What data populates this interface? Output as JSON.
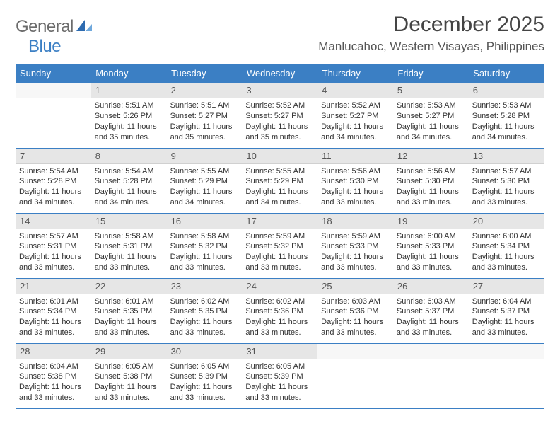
{
  "brand": {
    "general": "General",
    "blue": "Blue"
  },
  "title": "December 2025",
  "location": "Manlucahoc, Western Visayas, Philippines",
  "colors": {
    "header_bg": "#3b7fc4",
    "header_text": "#ffffff",
    "daynum_bg": "#e6e6e6",
    "border": "#3b7fc4",
    "logo_gray": "#6b6b6b",
    "logo_blue": "#3b7fc4"
  },
  "dayNames": [
    "Sunday",
    "Monday",
    "Tuesday",
    "Wednesday",
    "Thursday",
    "Friday",
    "Saturday"
  ],
  "weeks": [
    [
      null,
      {
        "n": "1",
        "sr": "Sunrise: 5:51 AM",
        "ss": "Sunset: 5:26 PM",
        "dl": "Daylight: 11 hours and 35 minutes."
      },
      {
        "n": "2",
        "sr": "Sunrise: 5:51 AM",
        "ss": "Sunset: 5:27 PM",
        "dl": "Daylight: 11 hours and 35 minutes."
      },
      {
        "n": "3",
        "sr": "Sunrise: 5:52 AM",
        "ss": "Sunset: 5:27 PM",
        "dl": "Daylight: 11 hours and 35 minutes."
      },
      {
        "n": "4",
        "sr": "Sunrise: 5:52 AM",
        "ss": "Sunset: 5:27 PM",
        "dl": "Daylight: 11 hours and 34 minutes."
      },
      {
        "n": "5",
        "sr": "Sunrise: 5:53 AM",
        "ss": "Sunset: 5:27 PM",
        "dl": "Daylight: 11 hours and 34 minutes."
      },
      {
        "n": "6",
        "sr": "Sunrise: 5:53 AM",
        "ss": "Sunset: 5:28 PM",
        "dl": "Daylight: 11 hours and 34 minutes."
      }
    ],
    [
      {
        "n": "7",
        "sr": "Sunrise: 5:54 AM",
        "ss": "Sunset: 5:28 PM",
        "dl": "Daylight: 11 hours and 34 minutes."
      },
      {
        "n": "8",
        "sr": "Sunrise: 5:54 AM",
        "ss": "Sunset: 5:28 PM",
        "dl": "Daylight: 11 hours and 34 minutes."
      },
      {
        "n": "9",
        "sr": "Sunrise: 5:55 AM",
        "ss": "Sunset: 5:29 PM",
        "dl": "Daylight: 11 hours and 34 minutes."
      },
      {
        "n": "10",
        "sr": "Sunrise: 5:55 AM",
        "ss": "Sunset: 5:29 PM",
        "dl": "Daylight: 11 hours and 34 minutes."
      },
      {
        "n": "11",
        "sr": "Sunrise: 5:56 AM",
        "ss": "Sunset: 5:30 PM",
        "dl": "Daylight: 11 hours and 33 minutes."
      },
      {
        "n": "12",
        "sr": "Sunrise: 5:56 AM",
        "ss": "Sunset: 5:30 PM",
        "dl": "Daylight: 11 hours and 33 minutes."
      },
      {
        "n": "13",
        "sr": "Sunrise: 5:57 AM",
        "ss": "Sunset: 5:30 PM",
        "dl": "Daylight: 11 hours and 33 minutes."
      }
    ],
    [
      {
        "n": "14",
        "sr": "Sunrise: 5:57 AM",
        "ss": "Sunset: 5:31 PM",
        "dl": "Daylight: 11 hours and 33 minutes."
      },
      {
        "n": "15",
        "sr": "Sunrise: 5:58 AM",
        "ss": "Sunset: 5:31 PM",
        "dl": "Daylight: 11 hours and 33 minutes."
      },
      {
        "n": "16",
        "sr": "Sunrise: 5:58 AM",
        "ss": "Sunset: 5:32 PM",
        "dl": "Daylight: 11 hours and 33 minutes."
      },
      {
        "n": "17",
        "sr": "Sunrise: 5:59 AM",
        "ss": "Sunset: 5:32 PM",
        "dl": "Daylight: 11 hours and 33 minutes."
      },
      {
        "n": "18",
        "sr": "Sunrise: 5:59 AM",
        "ss": "Sunset: 5:33 PM",
        "dl": "Daylight: 11 hours and 33 minutes."
      },
      {
        "n": "19",
        "sr": "Sunrise: 6:00 AM",
        "ss": "Sunset: 5:33 PM",
        "dl": "Daylight: 11 hours and 33 minutes."
      },
      {
        "n": "20",
        "sr": "Sunrise: 6:00 AM",
        "ss": "Sunset: 5:34 PM",
        "dl": "Daylight: 11 hours and 33 minutes."
      }
    ],
    [
      {
        "n": "21",
        "sr": "Sunrise: 6:01 AM",
        "ss": "Sunset: 5:34 PM",
        "dl": "Daylight: 11 hours and 33 minutes."
      },
      {
        "n": "22",
        "sr": "Sunrise: 6:01 AM",
        "ss": "Sunset: 5:35 PM",
        "dl": "Daylight: 11 hours and 33 minutes."
      },
      {
        "n": "23",
        "sr": "Sunrise: 6:02 AM",
        "ss": "Sunset: 5:35 PM",
        "dl": "Daylight: 11 hours and 33 minutes."
      },
      {
        "n": "24",
        "sr": "Sunrise: 6:02 AM",
        "ss": "Sunset: 5:36 PM",
        "dl": "Daylight: 11 hours and 33 minutes."
      },
      {
        "n": "25",
        "sr": "Sunrise: 6:03 AM",
        "ss": "Sunset: 5:36 PM",
        "dl": "Daylight: 11 hours and 33 minutes."
      },
      {
        "n": "26",
        "sr": "Sunrise: 6:03 AM",
        "ss": "Sunset: 5:37 PM",
        "dl": "Daylight: 11 hours and 33 minutes."
      },
      {
        "n": "27",
        "sr": "Sunrise: 6:04 AM",
        "ss": "Sunset: 5:37 PM",
        "dl": "Daylight: 11 hours and 33 minutes."
      }
    ],
    [
      {
        "n": "28",
        "sr": "Sunrise: 6:04 AM",
        "ss": "Sunset: 5:38 PM",
        "dl": "Daylight: 11 hours and 33 minutes."
      },
      {
        "n": "29",
        "sr": "Sunrise: 6:05 AM",
        "ss": "Sunset: 5:38 PM",
        "dl": "Daylight: 11 hours and 33 minutes."
      },
      {
        "n": "30",
        "sr": "Sunrise: 6:05 AM",
        "ss": "Sunset: 5:39 PM",
        "dl": "Daylight: 11 hours and 33 minutes."
      },
      {
        "n": "31",
        "sr": "Sunrise: 6:05 AM",
        "ss": "Sunset: 5:39 PM",
        "dl": "Daylight: 11 hours and 33 minutes."
      },
      null,
      null,
      null
    ]
  ]
}
